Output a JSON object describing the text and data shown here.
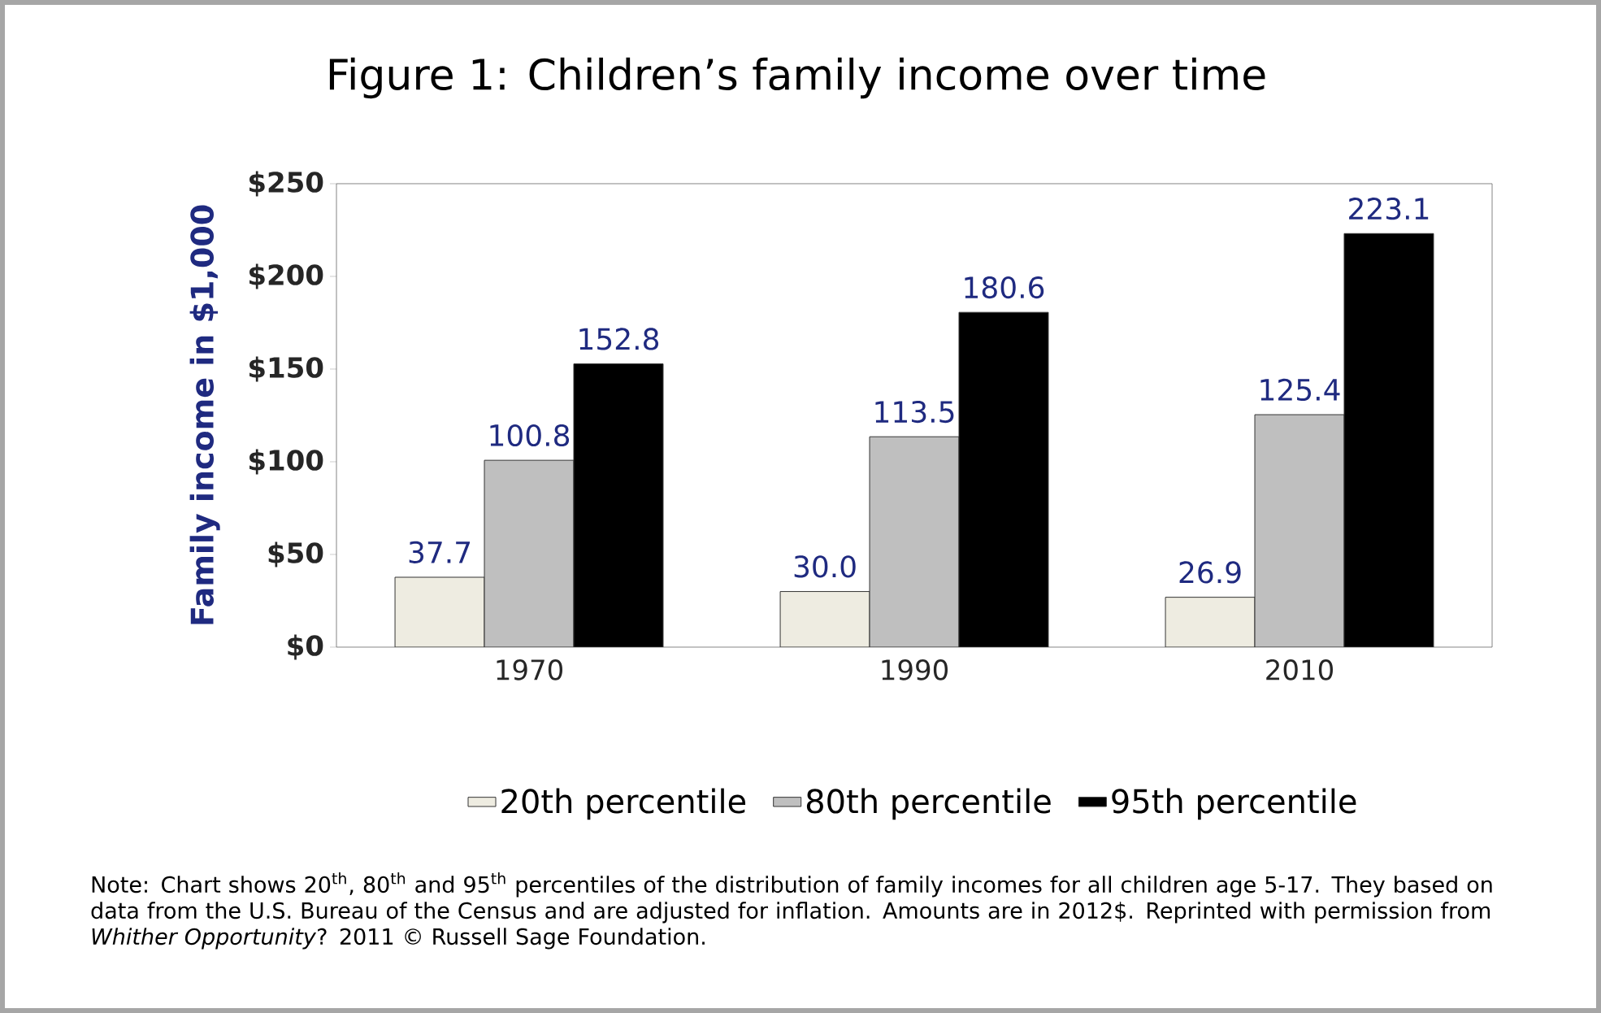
{
  "chart_data": {
    "type": "bar",
    "title": "Figure 1: Children’s family income over time",
    "ylabel": "Family  income in $1,000",
    "categories": [
      "1970",
      "1990",
      "2010"
    ],
    "series": [
      {
        "name": "20th percentile",
        "color": "#eeece1",
        "values": [
          37.7,
          30.0,
          26.9
        ],
        "value_labels": [
          "37.7",
          "30.0",
          "26.9"
        ]
      },
      {
        "name": "80th percentile",
        "color": "#bfbfbf",
        "values": [
          100.8,
          113.5,
          125.4
        ],
        "value_labels": [
          "100.8",
          "113.5",
          "125.4"
        ]
      },
      {
        "name": "95th percentile",
        "color": "#000000",
        "values": [
          152.8,
          180.6,
          223.1
        ],
        "value_labels": [
          "152.8",
          "180.6",
          "223.1"
        ]
      }
    ],
    "ylim": [
      0,
      250
    ],
    "yticks": [
      {
        "value": 0,
        "label": "$0"
      },
      {
        "value": 50,
        "label": "$50"
      },
      {
        "value": 100,
        "label": "$100"
      },
      {
        "value": 150,
        "label": "$150"
      },
      {
        "value": 200,
        "label": "$200"
      },
      {
        "value": 250,
        "label": "$250"
      }
    ],
    "legend": "bottom",
    "annotations": [
      "Note: Chart shows 20$^{th}$, 80$^{th}$ and 95$^{th}$ percentiles of the distribution of family incomes for all children age 5-17. They based on data from the U.S. Bureau of the Census and are adjusted for inflation.  Amounts are in 2012$. Reprinted with permission from *Whither Opportunity*? 2011 © Russell Sage Foundation."
    ]
  }
}
